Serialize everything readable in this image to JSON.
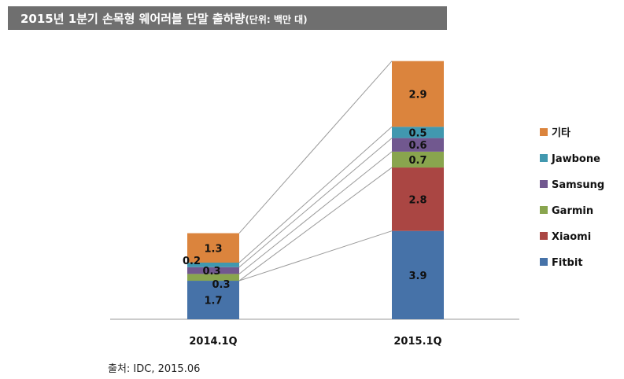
{
  "title": {
    "main": "2015년 1분기 손목형 웨어러블 단말 출하량",
    "unit": "(단위: 백만 대)"
  },
  "source": "출처: IDC, 2015.06",
  "chart_data": {
    "type": "bar",
    "stacked": true,
    "categories": [
      "2014.1Q",
      "2015.1Q"
    ],
    "series": [
      {
        "name": "Fitbit",
        "values": [
          1.7,
          3.9
        ],
        "color": "#4672a8"
      },
      {
        "name": "Xiaomi",
        "values": [
          0.0,
          2.8
        ],
        "color": "#aa4643"
      },
      {
        "name": "Garmin",
        "values": [
          0.3,
          0.7
        ],
        "color": "#89a54e"
      },
      {
        "name": "Samsung",
        "values": [
          0.3,
          0.6
        ],
        "color": "#71588f"
      },
      {
        "name": "Jawbone",
        "values": [
          0.2,
          0.5
        ],
        "color": "#4198af"
      },
      {
        "name": "기타",
        "values": [
          1.3,
          2.9
        ],
        "color": "#db843d"
      }
    ],
    "legend": "right",
    "grid": false,
    "axes_visible": false,
    "connector_lines": true
  }
}
